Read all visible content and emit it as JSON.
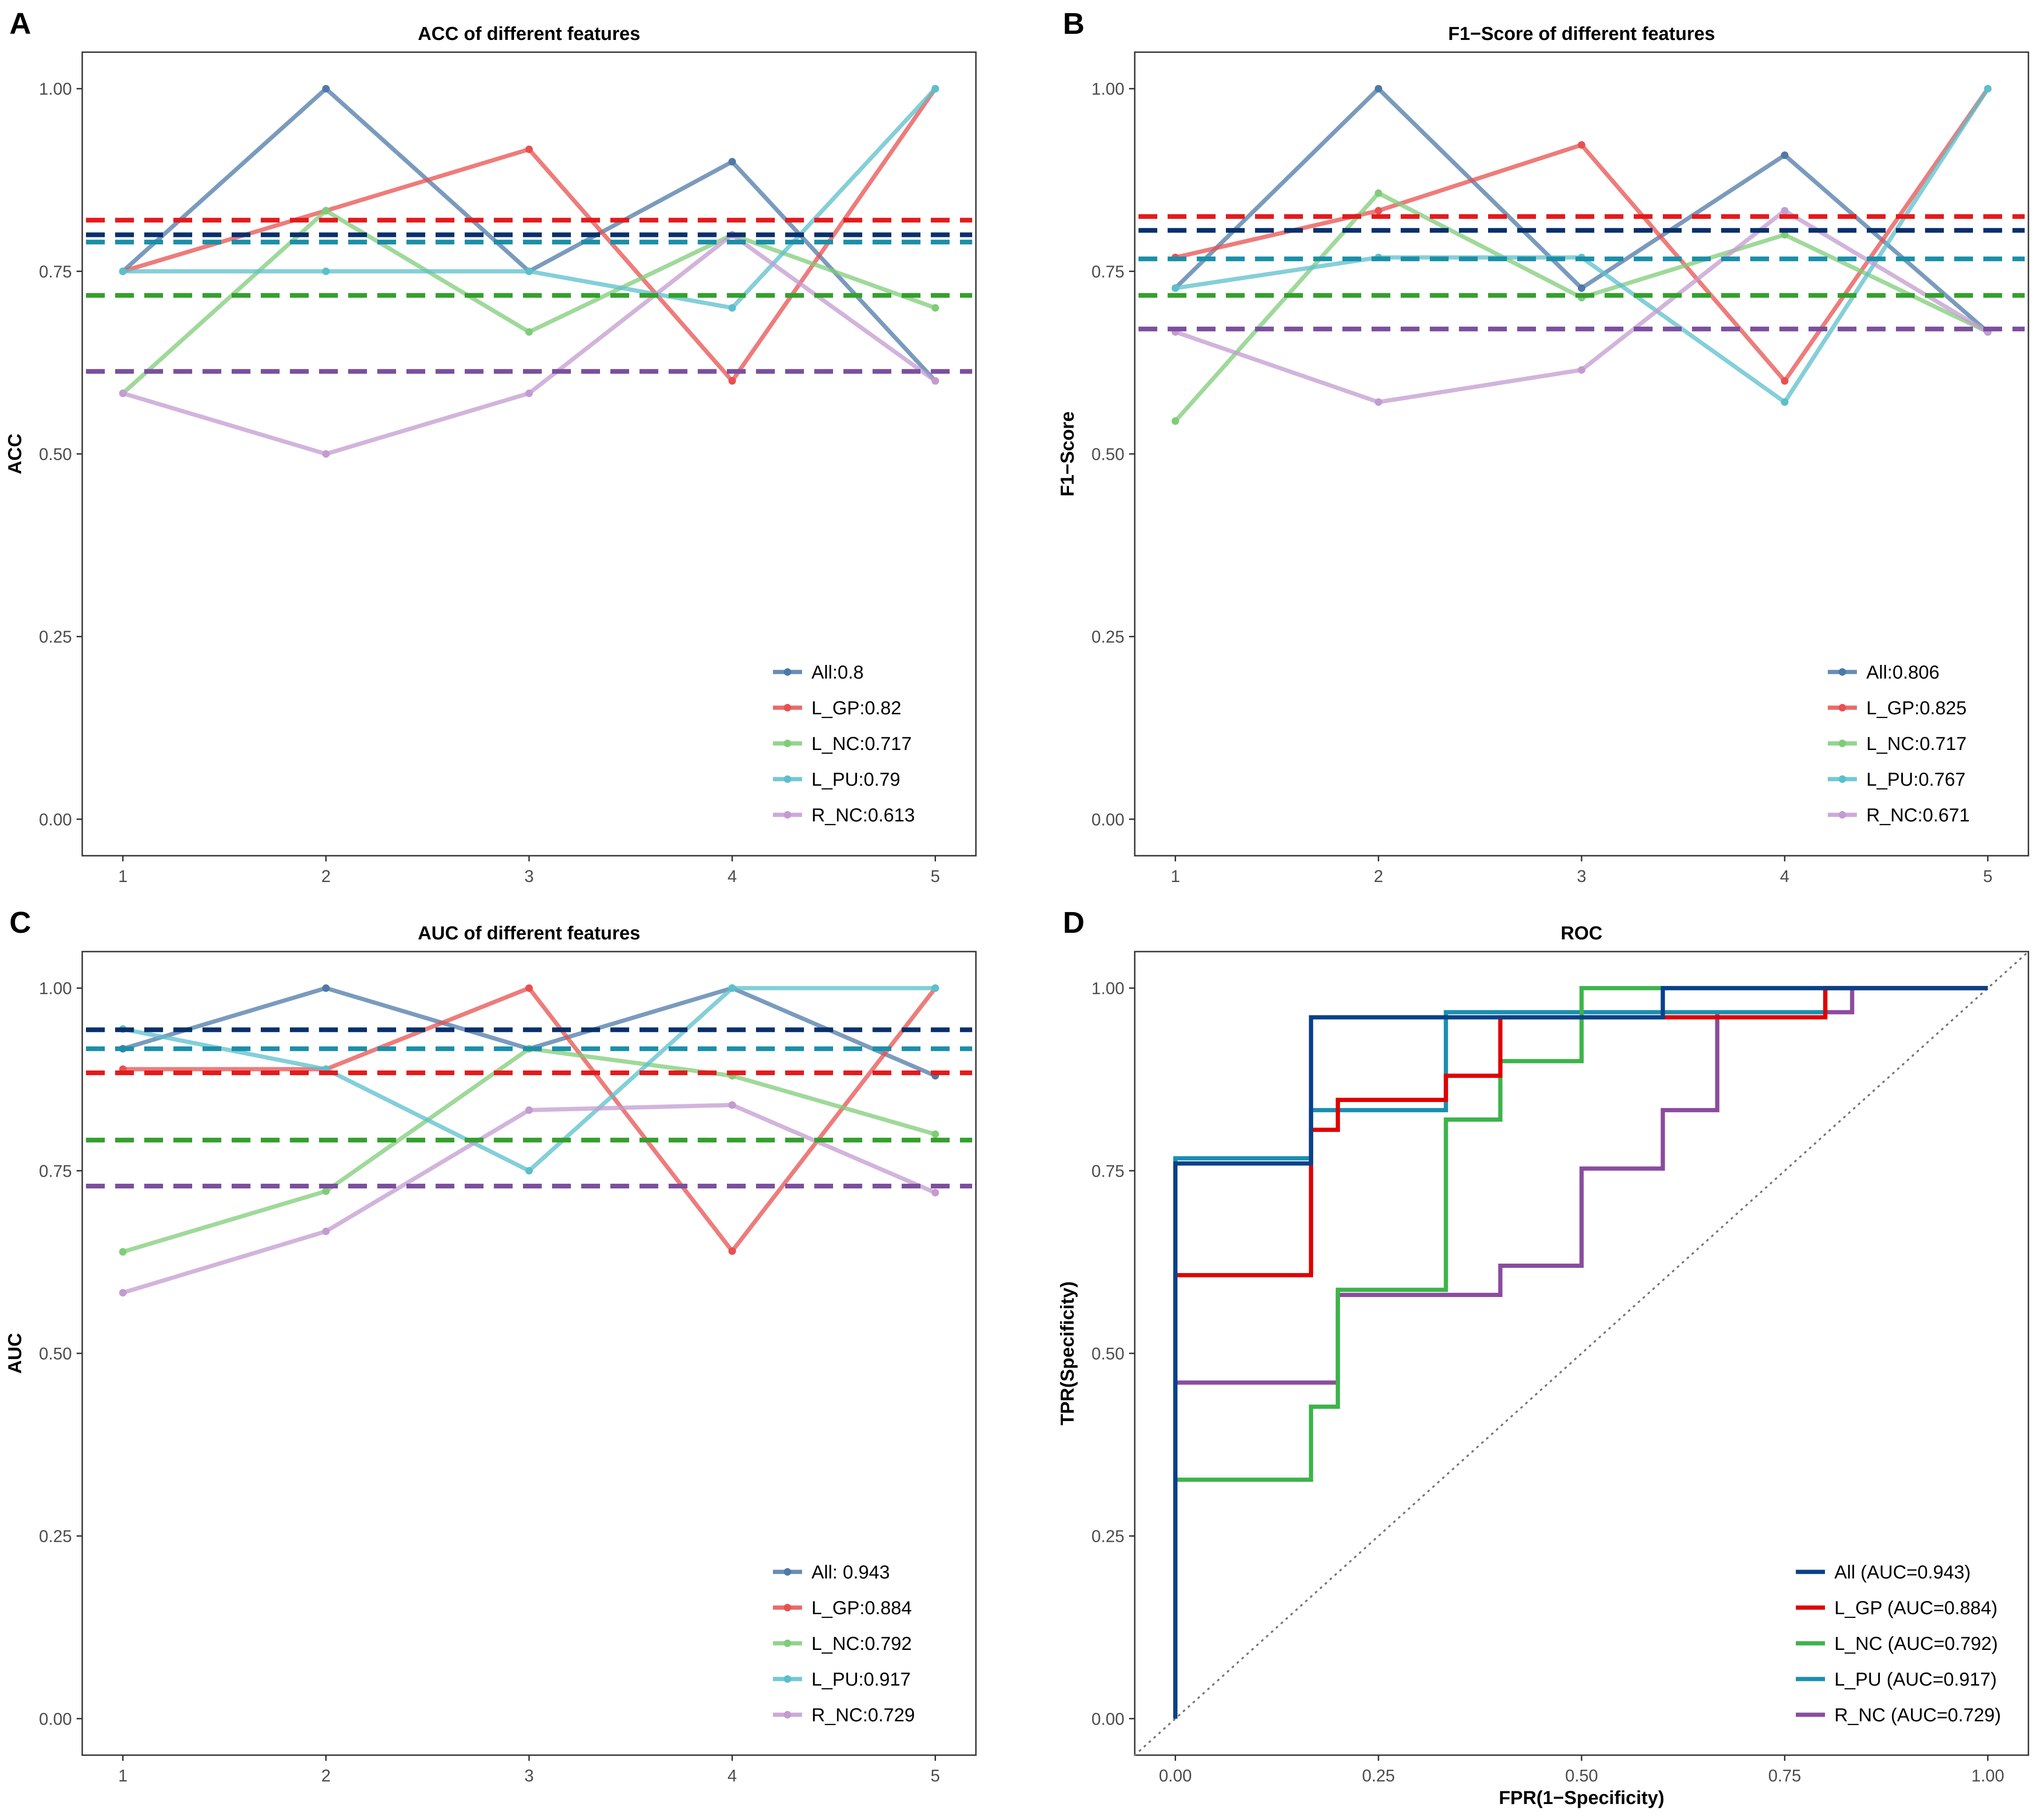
{
  "chart_data": [
    {
      "panel": "A",
      "type": "line",
      "title": "ACC of different features",
      "xlabel": "",
      "ylabel": "ACC",
      "x": [
        1,
        2,
        3,
        4,
        5
      ],
      "xlim": [
        0.8,
        5.2
      ],
      "ylim": [
        -0.05,
        1.05
      ],
      "xticks": [
        "1",
        "2",
        "3",
        "4",
        "5"
      ],
      "yticks": [
        "0.00",
        "0.25",
        "0.50",
        "0.75",
        "1.00"
      ],
      "legend_position": "bottom-right",
      "series": [
        {
          "name": "All",
          "label": "All:0.8",
          "color": "#4e79a7",
          "mean_color": "#08306b",
          "values": [
            0.75,
            1.0,
            0.75,
            0.9,
            0.6
          ],
          "mean": 0.8
        },
        {
          "name": "L_GP",
          "label": "L_GP:0.82",
          "color": "#e8504f",
          "mean_color": "#e41a1c",
          "values": [
            0.75,
            0.833,
            0.917,
            0.6,
            1.0
          ],
          "mean": 0.82
        },
        {
          "name": "L_NC",
          "label": "L_NC:0.717",
          "color": "#7fcc78",
          "mean_color": "#33a02c",
          "values": [
            0.583,
            0.833,
            0.667,
            0.8,
            0.7
          ],
          "mean": 0.717
        },
        {
          "name": "L_PU",
          "label": "L_PU:0.79",
          "color": "#5bbfcc",
          "mean_color": "#1b8fa8",
          "values": [
            0.75,
            0.75,
            0.75,
            0.7,
            1.0
          ],
          "mean": 0.79
        },
        {
          "name": "R_NC",
          "label": "R_NC:0.613",
          "color": "#c39bd0",
          "mean_color": "#7b4f9e",
          "values": [
            0.583,
            0.5,
            0.583,
            0.8,
            0.6
          ],
          "mean": 0.613
        }
      ]
    },
    {
      "panel": "B",
      "type": "line",
      "title": "F1−Score of different features",
      "xlabel": "",
      "ylabel": "F1−Score",
      "x": [
        1,
        2,
        3,
        4,
        5
      ],
      "xlim": [
        0.8,
        5.2
      ],
      "ylim": [
        -0.05,
        1.05
      ],
      "xticks": [
        "1",
        "2",
        "3",
        "4",
        "5"
      ],
      "yticks": [
        "0.00",
        "0.25",
        "0.50",
        "0.75",
        "1.00"
      ],
      "legend_position": "bottom-right",
      "series": [
        {
          "name": "All",
          "label": "All:0.806",
          "color": "#4e79a7",
          "mean_color": "#08306b",
          "values": [
            0.727,
            1.0,
            0.727,
            0.909,
            0.667
          ],
          "mean": 0.806
        },
        {
          "name": "L_GP",
          "label": "L_GP:0.825",
          "color": "#e8504f",
          "mean_color": "#e41a1c",
          "values": [
            0.769,
            0.833,
            0.923,
            0.6,
            1.0
          ],
          "mean": 0.825
        },
        {
          "name": "L_NC",
          "label": "L_NC:0.717",
          "color": "#7fcc78",
          "mean_color": "#33a02c",
          "values": [
            0.545,
            0.857,
            0.714,
            0.8,
            0.667
          ],
          "mean": 0.717
        },
        {
          "name": "L_PU",
          "label": "L_PU:0.767",
          "color": "#5bbfcc",
          "mean_color": "#1b8fa8",
          "values": [
            0.727,
            0.769,
            0.769,
            0.571,
            1.0
          ],
          "mean": 0.767
        },
        {
          "name": "R_NC",
          "label": "R_NC:0.671",
          "color": "#c39bd0",
          "mean_color": "#7b4f9e",
          "values": [
            0.667,
            0.571,
            0.615,
            0.833,
            0.667
          ],
          "mean": 0.671
        }
      ]
    },
    {
      "panel": "C",
      "type": "line",
      "title": "AUC of different features",
      "xlabel": "",
      "ylabel": "AUC",
      "x": [
        1,
        2,
        3,
        4,
        5
      ],
      "xlim": [
        0.8,
        5.2
      ],
      "ylim": [
        -0.05,
        1.05
      ],
      "xticks": [
        "1",
        "2",
        "3",
        "4",
        "5"
      ],
      "yticks": [
        "0.00",
        "0.25",
        "0.50",
        "0.75",
        "1.00"
      ],
      "legend_position": "bottom-right",
      "series": [
        {
          "name": "All",
          "label": "All: 0.943",
          "color": "#4e79a7",
          "mean_color": "#08306b",
          "values": [
            0.917,
            1.0,
            0.917,
            1.0,
            0.88
          ],
          "mean": 0.943
        },
        {
          "name": "L_GP",
          "label": "L_GP:0.884",
          "color": "#e8504f",
          "mean_color": "#e41a1c",
          "values": [
            0.889,
            0.889,
            1.0,
            0.64,
            1.0
          ],
          "mean": 0.884
        },
        {
          "name": "L_NC",
          "label": "L_NC:0.792",
          "color": "#7fcc78",
          "mean_color": "#33a02c",
          "values": [
            0.639,
            0.722,
            0.917,
            0.88,
            0.8
          ],
          "mean": 0.792
        },
        {
          "name": "L_PU",
          "label": "L_PU:0.917",
          "color": "#5bbfcc",
          "mean_color": "#1b8fa8",
          "values": [
            0.944,
            0.889,
            0.75,
            1.0,
            1.0
          ],
          "mean": 0.917
        },
        {
          "name": "R_NC",
          "label": "R_NC:0.729",
          "color": "#c39bd0",
          "mean_color": "#7b4f9e",
          "values": [
            0.583,
            0.667,
            0.833,
            0.84,
            0.72
          ],
          "mean": 0.729
        }
      ]
    },
    {
      "panel": "D",
      "type": "line",
      "title": "ROC",
      "xlabel": "FPR(1−Specificity)",
      "ylabel": "TPR(Specificity)",
      "xlim": [
        -0.05,
        1.05
      ],
      "ylim": [
        -0.05,
        1.05
      ],
      "xticks": [
        "0.00",
        "0.25",
        "0.50",
        "0.75",
        "1.00"
      ],
      "yticks": [
        "0.00",
        "0.25",
        "0.50",
        "0.75",
        "1.00"
      ],
      "legend_position": "bottom-right",
      "reference_line": "dotted diagonal",
      "series": [
        {
          "name": "All",
          "label": "All (AUC=0.943)",
          "color": "#08418a",
          "fpr": [
            0,
            0,
            0.167,
            0.167,
            0.6,
            0.6,
            1.0
          ],
          "tpr": [
            0,
            0.76,
            0.76,
            0.96,
            0.96,
            1.0,
            1.0
          ]
        },
        {
          "name": "L_GP",
          "label": "L_GP (AUC=0.884)",
          "color": "#e00000",
          "fpr": [
            0,
            0,
            0.167,
            0.167,
            0.2,
            0.2,
            0.333,
            0.333,
            0.4,
            0.4,
            0.8,
            0.8,
            1.0
          ],
          "tpr": [
            0,
            0.607,
            0.607,
            0.806,
            0.806,
            0.847,
            0.847,
            0.88,
            0.88,
            0.96,
            0.96,
            1.0,
            1.0
          ]
        },
        {
          "name": "L_NC",
          "label": "L_NC (AUC=0.792)",
          "color": "#3cb44b",
          "fpr": [
            0,
            0,
            0.167,
            0.167,
            0.2,
            0.2,
            0.333,
            0.333,
            0.4,
            0.4,
            0.5,
            0.5,
            1.0
          ],
          "tpr": [
            0,
            0.327,
            0.327,
            0.427,
            0.427,
            0.587,
            0.587,
            0.82,
            0.82,
            0.9,
            0.9,
            1.0,
            1.0
          ]
        },
        {
          "name": "L_PU",
          "label": "L_PU (AUC=0.917)",
          "color": "#1a8fb0",
          "fpr": [
            0,
            0,
            0.167,
            0.167,
            0.333,
            0.333,
            0.8,
            0.8,
            1.0
          ],
          "tpr": [
            0,
            0.767,
            0.767,
            0.833,
            0.833,
            0.967,
            0.967,
            1.0,
            1.0
          ]
        },
        {
          "name": "R_NC",
          "label": "R_NC (AUC=0.729)",
          "color": "#8b4c9e",
          "fpr": [
            0,
            0,
            0.2,
            0.2,
            0.4,
            0.4,
            0.5,
            0.5,
            0.6,
            0.6,
            0.667,
            0.667,
            0.833,
            0.833,
            1.0
          ],
          "tpr": [
            0,
            0.46,
            0.46,
            0.58,
            0.58,
            0.62,
            0.62,
            0.753,
            0.753,
            0.833,
            0.833,
            0.967,
            0.967,
            1.0,
            1.0
          ]
        }
      ]
    }
  ]
}
